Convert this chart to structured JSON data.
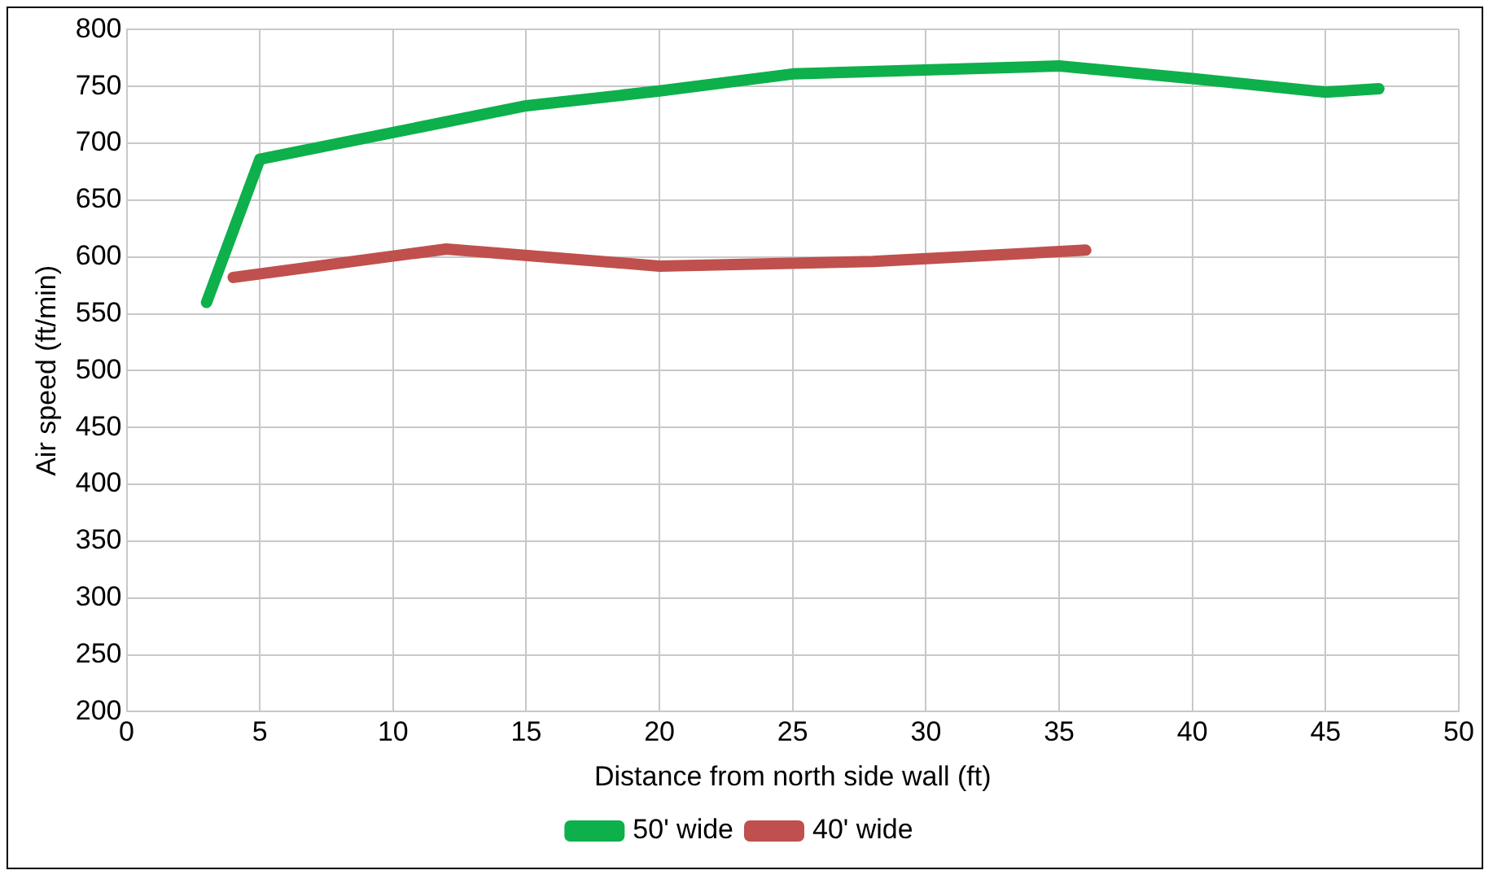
{
  "chart_data": {
    "type": "line",
    "xlabel": "Distance from north side wall (ft)",
    "ylabel": "Air speed (ft/min)",
    "xlim": [
      0,
      50
    ],
    "xticks": [
      0,
      5,
      10,
      15,
      20,
      25,
      30,
      35,
      40,
      45,
      50
    ],
    "ylim": [
      200,
      800
    ],
    "yticks": [
      200,
      250,
      300,
      350,
      400,
      450,
      500,
      550,
      600,
      650,
      700,
      750,
      800
    ],
    "grid": true,
    "legend": "bottom",
    "marker": "none",
    "line_style": "solid",
    "series": [
      {
        "name": "50' wide",
        "color": "#0db04b",
        "x": [
          3,
          5,
          15,
          20,
          25,
          35,
          40,
          45,
          47
        ],
        "values": [
          560,
          686,
          733,
          746,
          761,
          768,
          757,
          745,
          748
        ]
      },
      {
        "name": "40' wide",
        "color": "#c0504d",
        "x": [
          4,
          12,
          20,
          28,
          36
        ],
        "values": [
          582,
          607,
          592,
          596,
          606
        ]
      }
    ]
  }
}
